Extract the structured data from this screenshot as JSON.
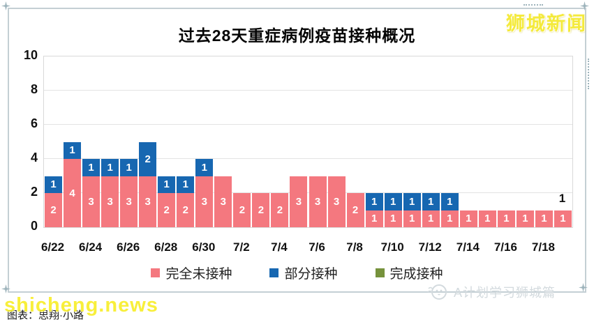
{
  "brand": "狮城新闻",
  "chart_data": {
    "type": "bar",
    "stacked": true,
    "title": "过去28天重症病例疫苗接种概况",
    "categories": [
      "6/22",
      "6/23",
      "6/24",
      "6/25",
      "6/26",
      "6/27",
      "6/28",
      "6/29",
      "6/30",
      "7/1",
      "7/2",
      "7/3",
      "7/4",
      "7/5",
      "7/6",
      "7/7",
      "7/8",
      "7/9",
      "7/10",
      "7/11",
      "7/12",
      "7/13",
      "7/14",
      "7/15",
      "7/16",
      "7/17",
      "7/18",
      "7/19"
    ],
    "x_tick_labels": [
      "6/22",
      "6/24",
      "6/26",
      "6/28",
      "6/30",
      "7/2",
      "7/4",
      "7/6",
      "7/8",
      "7/10",
      "7/12",
      "7/14",
      "7/16",
      "7/18"
    ],
    "x_tick_every": 2,
    "series": [
      {
        "name": "完全未接种",
        "color": "#f4787f",
        "values": [
          2,
          4,
          3,
          3,
          3,
          3,
          2,
          2,
          3,
          3,
          2,
          2,
          2,
          3,
          3,
          3,
          2,
          1,
          1,
          1,
          1,
          1,
          1,
          1,
          1,
          1,
          1,
          1
        ]
      },
      {
        "name": "部分接种",
        "color": "#1767b1",
        "values": [
          1,
          1,
          1,
          1,
          1,
          2,
          1,
          1,
          1,
          0,
          0,
          0,
          0,
          0,
          0,
          0,
          0,
          1,
          1,
          1,
          1,
          1,
          0,
          0,
          0,
          0,
          0,
          0
        ]
      },
      {
        "name": "完成接种",
        "color": "#76923c",
        "values": [
          0,
          0,
          0,
          0,
          0,
          0,
          0,
          0,
          0,
          0,
          0,
          0,
          0,
          0,
          0,
          0,
          0,
          0,
          0,
          0,
          0,
          0,
          0,
          0,
          0,
          0,
          0,
          0
        ]
      }
    ],
    "ylim": [
      0,
      10
    ],
    "yticks": [
      0,
      2,
      4,
      6,
      8,
      10
    ],
    "grid": true,
    "legend_position": "bottom",
    "annotations": [
      {
        "bar_index": 27,
        "text": "1"
      }
    ]
  },
  "watermarks": {
    "caption": "图表：思翔·小路",
    "site": "shicheng.news",
    "channel": "A计划学习狮城篇"
  }
}
